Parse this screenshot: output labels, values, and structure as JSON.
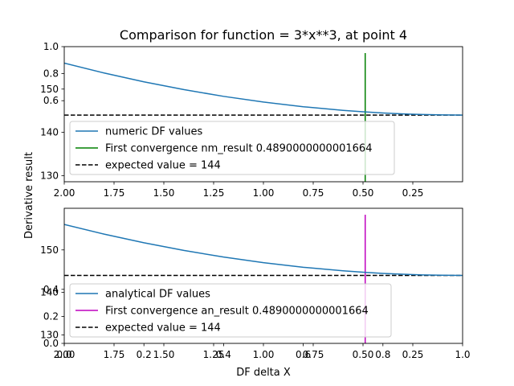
{
  "figure": {
    "title": "Comparison for function = 3*x**3, at point 4",
    "ylabel": "Derivative result",
    "xlabel": "DF delta X"
  },
  "colors": {
    "numeric_line": "#1f77b4",
    "analytical_line": "#1f77b4",
    "nm_convergence": "#008000",
    "an_convergence": "#bf00bf",
    "expected": "#000000"
  },
  "chart_data": [
    {
      "type": "line",
      "name": "top",
      "x": [
        2.0,
        1.8,
        1.6,
        1.4,
        1.2,
        1.0,
        0.8,
        0.6,
        0.5,
        0.4,
        0.3,
        0.2,
        0.1,
        0.0
      ],
      "series": [
        {
          "name": "numeric DF values",
          "y": [
            156.0,
            153.72,
            151.68,
            149.88,
            148.32,
            147.0,
            145.92,
            145.08,
            144.75,
            144.48,
            144.27,
            144.12,
            144.03,
            144.0
          ]
        }
      ],
      "convergence": {
        "name": "First convergence nm_result 0.4890000000001664",
        "x": 0.489
      },
      "expected": {
        "name": "expected value = 144",
        "y": 144
      },
      "xlim": [
        2.0,
        0.0
      ],
      "ylim": [
        128.6,
        159.8
      ],
      "xticks": [
        2.0,
        1.75,
        1.5,
        1.25,
        1.0,
        0.75,
        0.5,
        0.25
      ],
      "xtick_labels": [
        "2.00",
        "1.75",
        "1.50",
        "1.25",
        "1.00",
        "0.75",
        "0.50",
        "0.25"
      ],
      "yticks": [
        130,
        140,
        150
      ],
      "ytick_labels": [
        "130",
        "140",
        "150"
      ],
      "overlay_yticks": [
        "0.6",
        "0.8",
        "1.0"
      ],
      "legend": "lower-left"
    },
    {
      "type": "line",
      "name": "bottom",
      "x": [
        2.0,
        1.8,
        1.6,
        1.4,
        1.2,
        1.0,
        0.8,
        0.6,
        0.5,
        0.4,
        0.3,
        0.2,
        0.1,
        0.0
      ],
      "series": [
        {
          "name": "analytical DF values",
          "y": [
            156.0,
            153.72,
            151.68,
            149.88,
            148.32,
            147.0,
            145.92,
            145.08,
            144.75,
            144.48,
            144.27,
            144.12,
            144.03,
            144.0
          ]
        }
      ],
      "convergence": {
        "name": "First convergence an_result 0.4890000000001664",
        "x": 0.489
      },
      "expected": {
        "name": "expected value = 144",
        "y": 144
      },
      "xlim": [
        2.0,
        0.0
      ],
      "ylim": [
        128.0,
        159.8
      ],
      "xticks": [
        2.0,
        1.75,
        1.5,
        1.25,
        1.0,
        0.75,
        0.5,
        0.25
      ],
      "xtick_labels": [
        "2.00",
        "1.75",
        "1.50",
        "1.25",
        "1.00",
        "0.75",
        "0.50",
        "0.25"
      ],
      "yticks": [
        130,
        140,
        150
      ],
      "ytick_labels": [
        "130",
        "140",
        "150"
      ],
      "overlay_yticks": [
        "0.0",
        "0.2",
        "0.4"
      ],
      "overlay_xticks": [
        "0.0",
        "0.2",
        "0.4",
        "0.6",
        "0.8",
        "1.0"
      ]
    }
  ]
}
